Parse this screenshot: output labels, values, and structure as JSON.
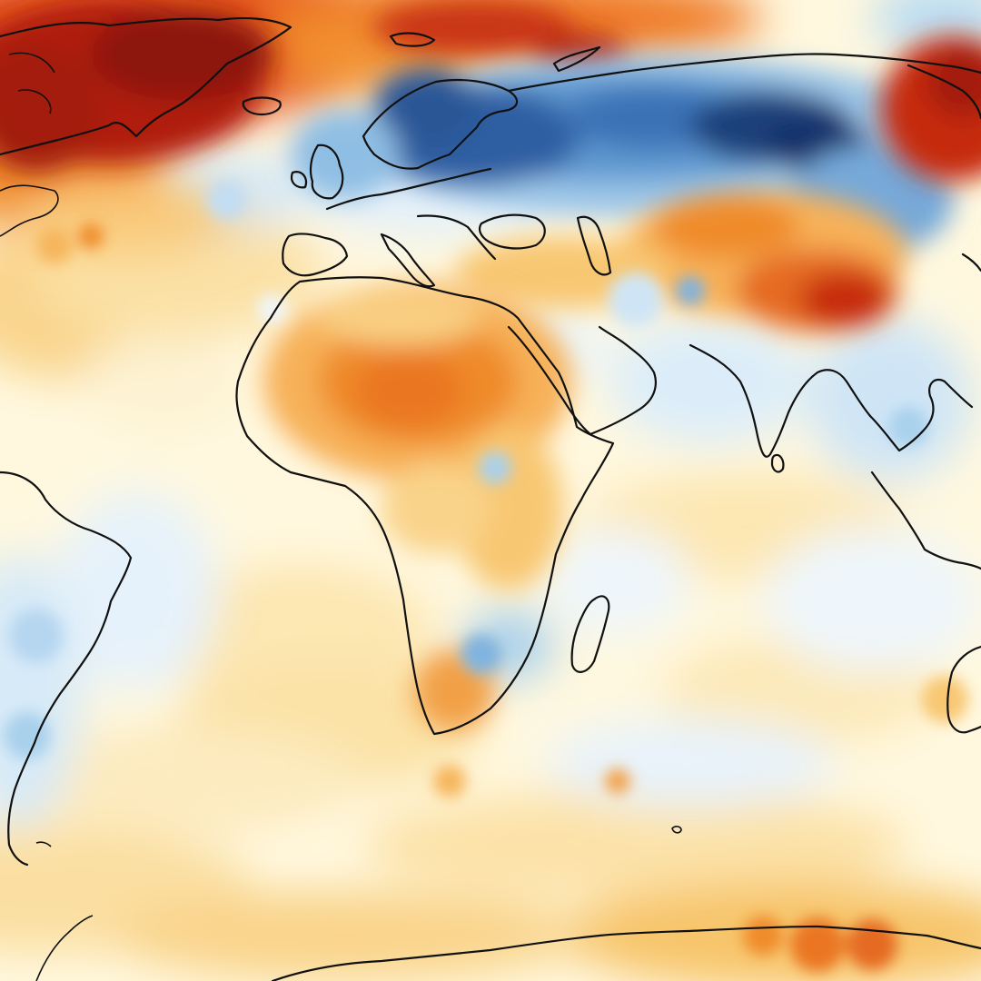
{
  "map": {
    "type": "temperature-anomaly",
    "projection": "robinson-like",
    "labels_visible": false,
    "palette": {
      "strong_negative": "#1e3f7a",
      "negative": "#3f7cbf",
      "weak_negative": "#a9d0ec",
      "slight_negative": "#e3f1fb",
      "neutral": "#fff8df",
      "slight_positive": "#fde9b3",
      "weak_positive": "#f7c56b",
      "positive": "#ef8b2c",
      "strong_positive": "#c62a10",
      "extreme_positive": "#8d1309"
    },
    "regions": [
      {
        "name": "greenland",
        "anomaly": "extreme_positive"
      },
      {
        "name": "north-atlantic-arctic",
        "anomaly": "strong_positive"
      },
      {
        "name": "northern-europe-siberia",
        "anomaly": "strong_negative"
      },
      {
        "name": "central-asia",
        "anomaly": "positive"
      },
      {
        "name": "east-siberia",
        "anomaly": "strong_positive"
      },
      {
        "name": "sahara",
        "anomaly": "positive"
      },
      {
        "name": "southern-africa",
        "anomaly": "weak_positive"
      },
      {
        "name": "south-america",
        "anomaly": "weak_negative"
      },
      {
        "name": "southern-ocean",
        "anomaly": "weak_positive"
      }
    ]
  }
}
